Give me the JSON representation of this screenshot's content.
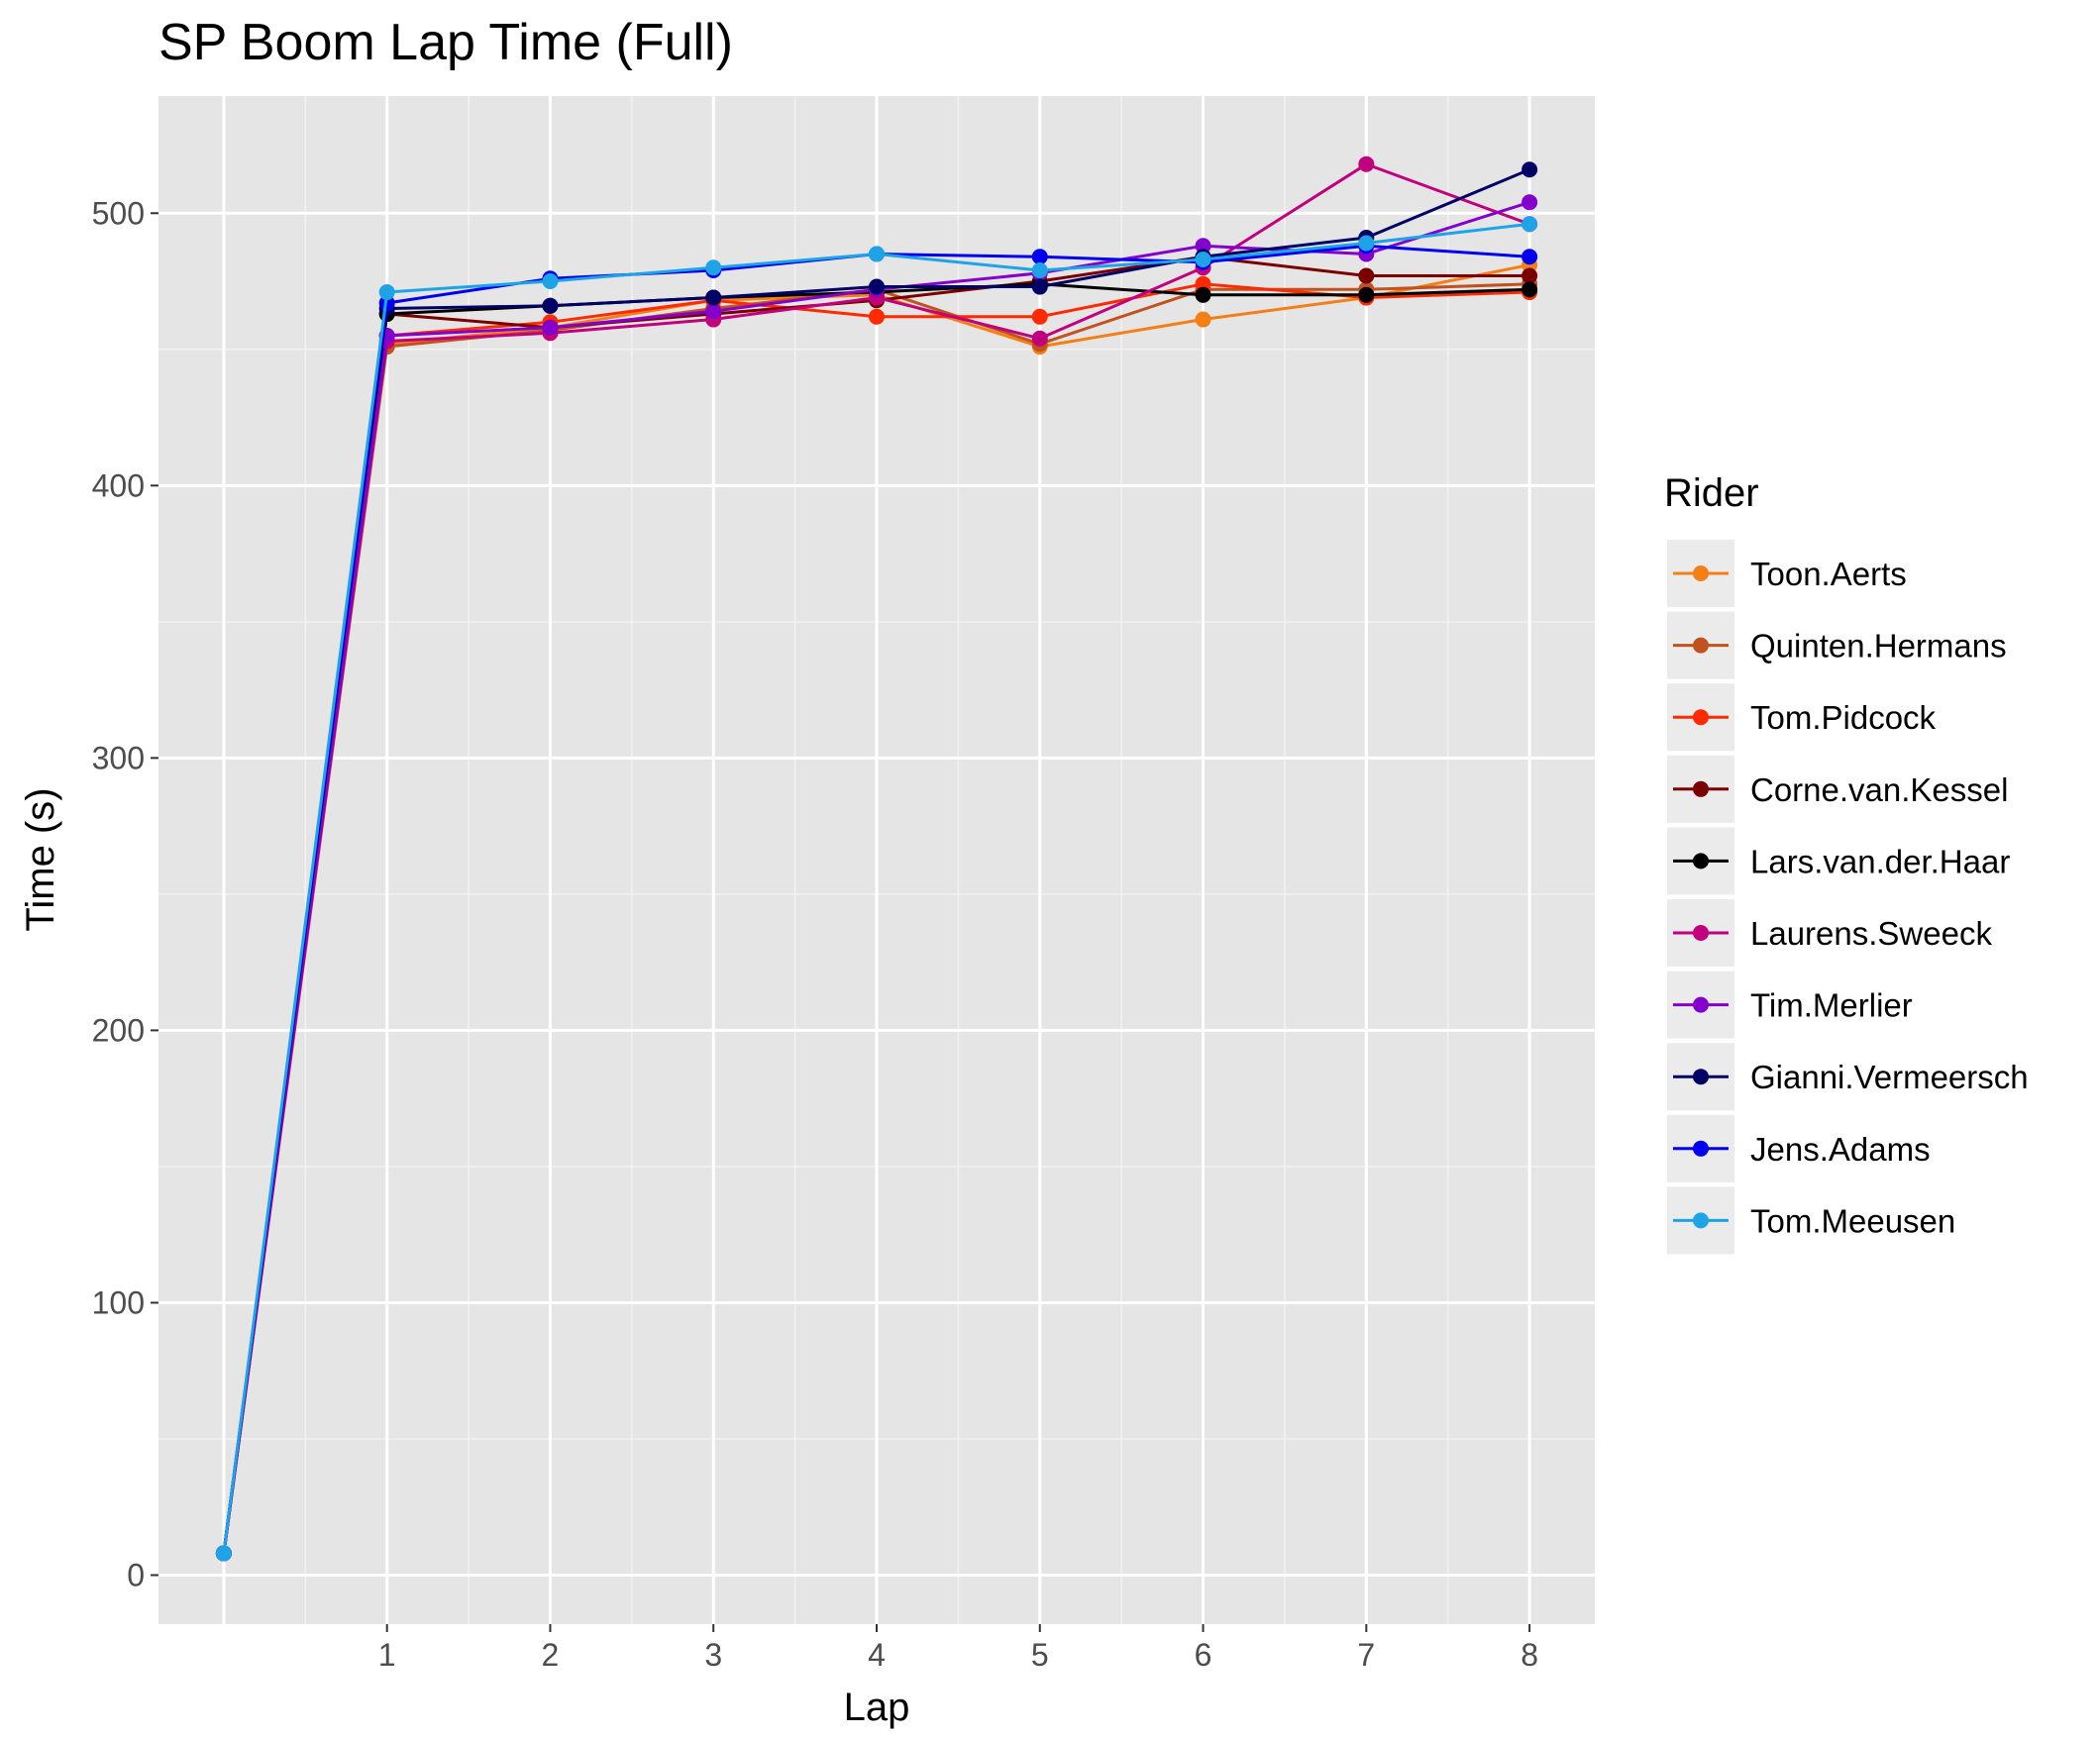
{
  "chart_data": {
    "type": "line",
    "title": "SP Boom Lap Time (Full)",
    "xlabel": "Lap",
    "ylabel": "Time (s)",
    "xlim": [
      -0.4,
      8.4
    ],
    "ylim": [
      -18,
      543
    ],
    "x_ticks": [
      1,
      2,
      3,
      4,
      5,
      6,
      7,
      8
    ],
    "y_ticks": [
      0,
      100,
      200,
      300,
      400,
      500
    ],
    "grid": true,
    "legend_title": "Rider",
    "legend_position": "right",
    "x": [
      0,
      1,
      2,
      3,
      4,
      5,
      6,
      7,
      8
    ],
    "series": [
      {
        "name": "Toon.Aerts",
        "color": "#f57f17",
        "values": [
          8,
          452,
          458,
          468,
          470,
          451,
          461,
          469,
          481
        ]
      },
      {
        "name": "Quinten.Hermans",
        "color": "#c2521d",
        "values": [
          8,
          451,
          457,
          465,
          472,
          452,
          472,
          472,
          474
        ]
      },
      {
        "name": "Tom.Pidcock",
        "color": "#ff2a00",
        "values": [
          8,
          455,
          460,
          468,
          462,
          462,
          474,
          469,
          471
        ]
      },
      {
        "name": "Corne.van.Kessel",
        "color": "#7a0000",
        "values": [
          8,
          463,
          458,
          463,
          468,
          475,
          484,
          477,
          477
        ]
      },
      {
        "name": "Lars.van.der.Haar",
        "color": "#000000",
        "values": [
          8,
          463,
          466,
          469,
          471,
          474,
          470,
          470,
          472
        ]
      },
      {
        "name": "Laurens.Sweeck",
        "color": "#c0007c",
        "values": [
          8,
          453,
          456,
          461,
          469,
          454,
          480,
          518,
          496
        ]
      },
      {
        "name": "Tim.Merlier",
        "color": "#8400cc",
        "values": [
          8,
          455,
          458,
          464,
          472,
          478,
          488,
          485,
          504
        ]
      },
      {
        "name": "Gianni.Vermeersch",
        "color": "#000066",
        "values": [
          8,
          465,
          466,
          469,
          473,
          473,
          484,
          491,
          516
        ]
      },
      {
        "name": "Jens.Adams",
        "color": "#0000ee",
        "values": [
          8,
          467,
          476,
          479,
          485,
          484,
          482,
          488,
          484
        ]
      },
      {
        "name": "Tom.Meeusen",
        "color": "#1ea4e6",
        "values": [
          8,
          471,
          475,
          480,
          485,
          479,
          483,
          489,
          496
        ]
      }
    ]
  }
}
